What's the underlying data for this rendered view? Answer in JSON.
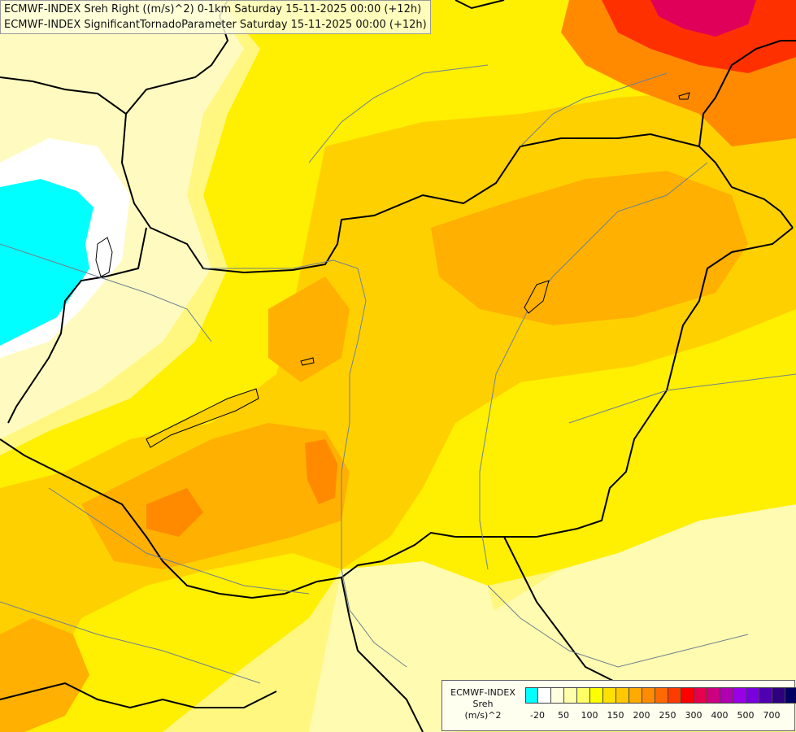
{
  "title": {
    "line1": "ECMWF-INDEX Sreh Right ((m/s)^2) 0-1km Saturday 15-11-2025 00:00 (+12h)",
    "line2": "ECMWF-INDEX SignificantTornadoParameter Saturday 15-11-2025 00:00 (+12h)"
  },
  "legend": {
    "label1": "ECMWF-INDEX",
    "label2": "Sreh",
    "label3": "(m/s)^2",
    "colors": [
      "#00ffff",
      "#ffffff",
      "#ffffe0",
      "#ffffaa",
      "#ffff66",
      "#ffff00",
      "#ffe000",
      "#ffc800",
      "#ffaa00",
      "#ff8c00",
      "#ff6a00",
      "#ff3c00",
      "#ff0000",
      "#e6004d",
      "#cc0080",
      "#b000b0",
      "#9900e6",
      "#7a00e0",
      "#5000b0",
      "#2e0080",
      "#000060"
    ],
    "ticks": [
      "-20",
      "50",
      "100",
      "150",
      "200",
      "250",
      "300",
      "400",
      "500",
      "700"
    ]
  },
  "map_colors": {
    "pale": "#fffbb0",
    "light": "#fff780",
    "yellow": "#ffef00",
    "gold": "#ffd000",
    "orange": "#ffb000",
    "dark_orange": "#ff8a00",
    "red": "#ff3000",
    "magenta": "#e0005a",
    "cyan": "#00ffff"
  }
}
